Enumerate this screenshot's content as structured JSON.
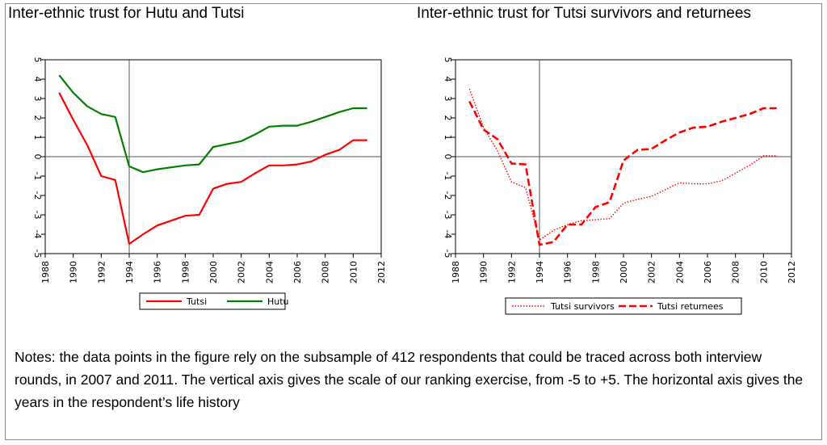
{
  "titles": {
    "left": "Inter-ethnic trust for Hutu and Tutsi",
    "right": "Inter-ethnic trust for Tutsi survivors and returnees"
  },
  "notes": "Notes: the data points in the figure rely on the subsample of 412 respondents that could be traced across both interview rounds, in 2007 and 2011. The vertical axis gives the scale of our ranking exercise, from -5 to +5. The horizontal axis gives the years in the respondent’s life history",
  "chart_data": [
    {
      "type": "line",
      "title": "Inter-ethnic trust for Hutu and Tutsi",
      "xlim": [
        1988,
        2012
      ],
      "ylim": [
        -5,
        5
      ],
      "x_ticks": [
        1988,
        1990,
        1992,
        1994,
        1996,
        1998,
        2000,
        2002,
        2004,
        2006,
        2008,
        2010,
        2012
      ],
      "y_ticks": [
        -5,
        -4,
        -3,
        -2,
        -1,
        0,
        1,
        2,
        3,
        4,
        5
      ],
      "reference_lines": {
        "x": 1994,
        "y": 0
      },
      "legend": "bottom",
      "series": [
        {
          "name": "Tutsi",
          "color": "#ff0000",
          "style": "solid",
          "x": [
            1989,
            1990,
            1991,
            1992,
            1993,
            1994,
            1995,
            1996,
            1997,
            1998,
            1999,
            2000,
            2001,
            2002,
            2003,
            2004,
            2005,
            2006,
            2007,
            2008,
            2009,
            2010,
            2011
          ],
          "y": [
            3.3,
            1.9,
            0.6,
            -1.0,
            -1.2,
            -4.5,
            -4.0,
            -3.55,
            -3.3,
            -3.05,
            -3.0,
            -1.65,
            -1.4,
            -1.3,
            -0.85,
            -0.45,
            -0.45,
            -0.4,
            -0.25,
            0.1,
            0.35,
            0.85,
            0.85
          ]
        },
        {
          "name": "Hutu",
          "color": "#008000",
          "style": "solid",
          "x": [
            1989,
            1990,
            1991,
            1992,
            1993,
            1994,
            1995,
            1996,
            1997,
            1998,
            1999,
            2000,
            2001,
            2002,
            2003,
            2004,
            2005,
            2006,
            2007,
            2008,
            2009,
            2010,
            2011
          ],
          "y": [
            4.2,
            3.3,
            2.6,
            2.2,
            2.05,
            -0.5,
            -0.8,
            -0.65,
            -0.55,
            -0.45,
            -0.4,
            0.5,
            0.65,
            0.8,
            1.15,
            1.55,
            1.6,
            1.6,
            1.8,
            2.05,
            2.3,
            2.5,
            2.5
          ]
        }
      ]
    },
    {
      "type": "line",
      "title": "Inter-ethnic trust for Tutsi survivors and returnees",
      "xlim": [
        1988,
        2012
      ],
      "ylim": [
        -5,
        5
      ],
      "x_ticks": [
        1988,
        1990,
        1992,
        1994,
        1996,
        1998,
        2000,
        2002,
        2004,
        2006,
        2008,
        2010,
        2012
      ],
      "y_ticks": [
        -5,
        -4,
        -3,
        -2,
        -1,
        0,
        1,
        2,
        3,
        4,
        5
      ],
      "reference_lines": {
        "x": 1994,
        "y": 0
      },
      "legend": "bottom",
      "series": [
        {
          "name": "Tutsi survivors",
          "color": "#ff0000",
          "style": "dotted",
          "x": [
            1989,
            1990,
            1991,
            1992,
            1993,
            1994,
            1995,
            1996,
            1997,
            1998,
            1999,
            2000,
            2001,
            2002,
            2003,
            2004,
            2005,
            2006,
            2007,
            2008,
            2009,
            2010,
            2011
          ],
          "y": [
            3.5,
            1.5,
            0.3,
            -1.3,
            -1.6,
            -4.3,
            -3.8,
            -3.5,
            -3.3,
            -3.25,
            -3.2,
            -2.4,
            -2.2,
            -2.05,
            -1.7,
            -1.35,
            -1.4,
            -1.4,
            -1.25,
            -0.85,
            -0.45,
            0.05,
            0.05
          ]
        },
        {
          "name": "Tutsi returnees",
          "color": "#ff0000",
          "style": "dashed",
          "x": [
            1989,
            1990,
            1991,
            1992,
            1993,
            1994,
            1995,
            1996,
            1997,
            1998,
            1999,
            2000,
            2001,
            2002,
            2003,
            2004,
            2005,
            2006,
            2007,
            2008,
            2009,
            2010,
            2011
          ],
          "y": [
            2.85,
            1.4,
            0.9,
            -0.35,
            -0.4,
            -4.55,
            -4.4,
            -3.5,
            -3.5,
            -2.6,
            -2.35,
            -0.2,
            0.35,
            0.4,
            0.85,
            1.25,
            1.5,
            1.55,
            1.8,
            2.0,
            2.2,
            2.5,
            2.5
          ]
        }
      ]
    }
  ]
}
